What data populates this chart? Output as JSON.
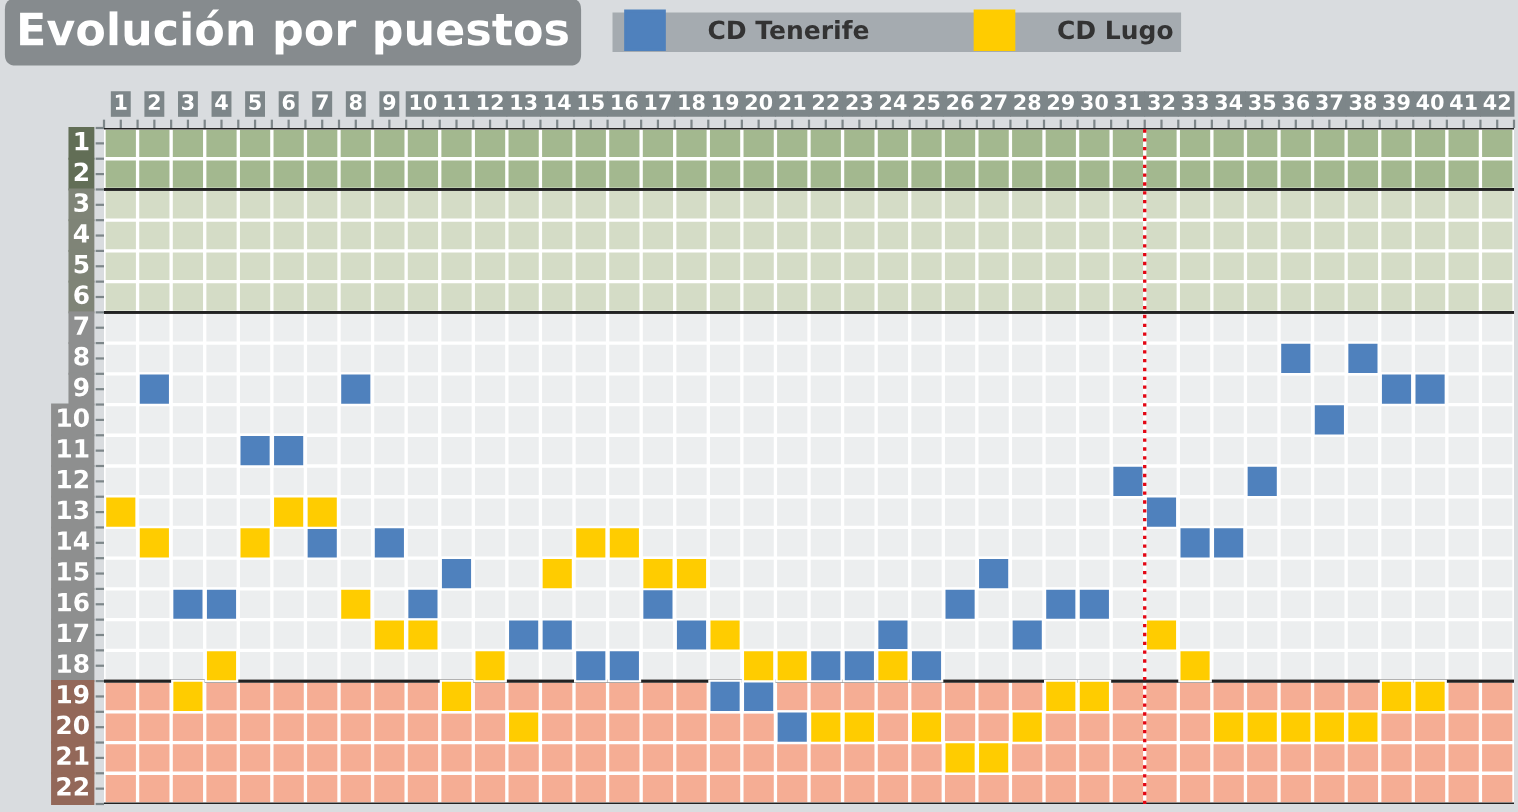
{
  "chart_data": {
    "type": "scatter",
    "title": "Evolución por puestos",
    "x": [
      1,
      2,
      3,
      4,
      5,
      6,
      7,
      8,
      9,
      10,
      11,
      12,
      13,
      14,
      15,
      16,
      17,
      18,
      19,
      20,
      21,
      22,
      23,
      24,
      25,
      26,
      27,
      28,
      29,
      30,
      31,
      32,
      33,
      34,
      35,
      36,
      37,
      38,
      39,
      40
    ],
    "series": [
      {
        "name": "CD Tenerife",
        "color": "#4f81bd",
        "values": [
          null,
          9,
          16,
          16,
          11,
          11,
          14,
          9,
          14,
          16,
          15,
          null,
          17,
          17,
          18,
          18,
          16,
          17,
          19,
          19,
          20,
          18,
          18,
          17,
          18,
          16,
          15,
          17,
          16,
          16,
          12,
          13,
          14,
          14,
          12,
          8,
          10,
          8,
          9,
          9
        ]
      },
      {
        "name": "CD Lugo",
        "color": "#ffcc00",
        "values": [
          13,
          14,
          19,
          18,
          14,
          13,
          13,
          16,
          17,
          17,
          19,
          18,
          20,
          15,
          14,
          14,
          15,
          15,
          17,
          18,
          18,
          20,
          20,
          18,
          20,
          21,
          21,
          20,
          19,
          19,
          null,
          17,
          18,
          20,
          20,
          20,
          20,
          20,
          19,
          19
        ]
      }
    ],
    "marker": "square",
    "xlim": [
      0.5,
      42.5
    ],
    "xticks": [
      {
        "value": 0.5,
        "label": null
      },
      1,
      {
        "value": 1.5,
        "label": null
      },
      2,
      {
        "value": 2.5,
        "label": null
      },
      3,
      {
        "value": 3.5,
        "label": null
      },
      4,
      {
        "value": 4.5,
        "label": null
      },
      5,
      {
        "value": 5.5,
        "label": null
      },
      6,
      {
        "value": 6.5,
        "label": null
      },
      7,
      {
        "value": 7.5,
        "label": null
      },
      8,
      {
        "value": 8.5,
        "label": null
      },
      9,
      {
        "value": 9.5,
        "label": null
      },
      10,
      {
        "value": 10.5,
        "label": null
      },
      11,
      {
        "value": 11.5,
        "label": null
      },
      12,
      {
        "value": 12.5,
        "label": null
      },
      13,
      {
        "value": 13.5,
        "label": null
      },
      14,
      {
        "value": 14.5,
        "label": null
      },
      15,
      {
        "value": 15.5,
        "label": null
      },
      16,
      {
        "value": 16.5,
        "label": null
      },
      17,
      {
        "value": 17.5,
        "label": null
      },
      18,
      {
        "value": 18.5,
        "label": null
      },
      19,
      {
        "value": 19.5,
        "label": null
      },
      20,
      {
        "value": 20.5,
        "label": null
      },
      21,
      {
        "value": 21.5,
        "label": null
      },
      22,
      {
        "value": 22.5,
        "label": null
      },
      23,
      {
        "value": 23.5,
        "label": null
      },
      24,
      {
        "value": 24.5,
        "label": null
      },
      25,
      {
        "value": 25.5,
        "label": null
      },
      26,
      {
        "value": 26.5,
        "label": null
      },
      27,
      {
        "value": 27.5,
        "label": null
      },
      28,
      {
        "value": 28.5,
        "label": null
      },
      29,
      {
        "value": 29.5,
        "label": null
      },
      30,
      {
        "value": 30.5,
        "label": null
      },
      31,
      {
        "value": 31.5,
        "label": null
      },
      32,
      {
        "value": 32.5,
        "label": null
      },
      33,
      {
        "value": 33.5,
        "label": null
      },
      34,
      {
        "value": 34.5,
        "label": null
      },
      35,
      {
        "value": 35.5,
        "label": null
      },
      36,
      {
        "value": 36.5,
        "label": null
      },
      37,
      {
        "value": 37.5,
        "label": null
      },
      38,
      {
        "value": 38.5,
        "label": null
      },
      39,
      {
        "value": 39.5,
        "label": null
      },
      40,
      {
        "value": 40.5,
        "label": null
      },
      41,
      {
        "value": 41.5,
        "label": null
      },
      42,
      {
        "value": 42.5,
        "label": null
      }
    ],
    "ylim": [
      22.5,
      0.5
    ],
    "yticks": [
      {
        "value": 0.5,
        "label": null
      },
      1,
      {
        "value": 1.5,
        "label": null
      },
      2,
      {
        "value": 2.5,
        "label": null
      },
      3,
      {
        "value": 3.5,
        "label": null
      },
      4,
      {
        "value": 4.5,
        "label": null
      },
      5,
      {
        "value": 5.5,
        "label": null
      },
      6,
      {
        "value": 6.5,
        "label": null
      },
      7,
      {
        "value": 7.5,
        "label": null
      },
      8,
      {
        "value": 8.5,
        "label": null
      },
      9,
      {
        "value": 9.5,
        "label": null
      },
      10,
      {
        "value": 10.5,
        "label": null
      },
      11,
      {
        "value": 11.5,
        "label": null
      },
      12,
      {
        "value": 12.5,
        "label": null
      },
      13,
      {
        "value": 13.5,
        "label": null
      },
      14,
      {
        "value": 14.5,
        "label": null
      },
      15,
      {
        "value": 15.5,
        "label": null
      },
      16,
      {
        "value": 16.5,
        "label": null
      },
      17,
      {
        "value": 17.5,
        "label": null
      },
      18,
      {
        "value": 18.5,
        "label": null
      },
      19,
      {
        "value": 19.5,
        "label": null
      },
      20,
      {
        "value": 20.5,
        "label": null
      },
      21,
      {
        "value": 21.5,
        "label": null
      },
      22,
      {
        "value": 22.5,
        "label": null
      }
    ],
    "bands": [
      {
        "axis": "y",
        "from": 0.5,
        "to": 2.5,
        "color": "#a3b88f"
      },
      {
        "axis": "y",
        "from": 2.5,
        "to": 6.5,
        "color": "#d4dcc6"
      },
      {
        "axis": "y",
        "from": 6.5,
        "to": 18.5,
        "color": "#eceeef"
      },
      {
        "axis": "y",
        "from": 18.5,
        "to": 22.5,
        "color": "#f5ad94"
      }
    ],
    "ref_lines": [
      {
        "axis": "x",
        "value": 31.5,
        "color": "#e30613",
        "line_style": "dotted"
      }
    ],
    "grid": true,
    "legend": "top"
  }
}
